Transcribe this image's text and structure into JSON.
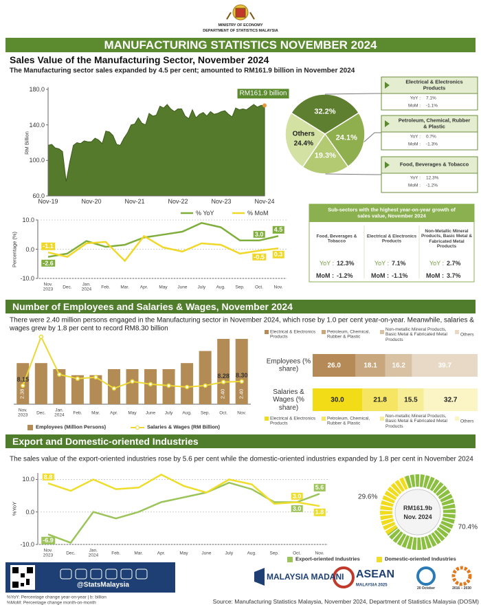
{
  "header": {
    "ministry": "MINISTRY OF ECONOMY",
    "department": "DEPARTMENT OF STATISTICS MALAYSIA",
    "title": "MANUFACTURING STATISTICS NOVEMBER 2024"
  },
  "sections": [
    {
      "heading": "Sales Value of the Manufacturing Sector, November 2024",
      "text": "The Manufacturing sector sales expanded by 4.5 per cent; amounted to RM161.9 billion in November 2024"
    },
    {
      "heading": "Number of Employees and Salaries & Wages, November 2024",
      "text": "There were 2.40 million persons engaged in the Manufacturing sector in November 2024, which rose by 1.0 per cent year-on-year. Meanwhile, salaries & wages grew by 1.8 per cent to record RM8.30 billion"
    },
    {
      "heading": "Export and Domestic-oriented Industries",
      "text": "The sales value of the export-oriented industries rose by 5.6 per cent while the domestic-oriented industries expanded by 1.8 per cent in November 2024"
    }
  ],
  "chart_data": [
    {
      "type": "area",
      "ylabel": "RM Billion",
      "annotation": "RM161.9 billion",
      "color": "#557a2c",
      "categories": [
        "Nov-19",
        null,
        null,
        null,
        null,
        null,
        null,
        null,
        null,
        null,
        null,
        null,
        "Nov-20",
        null,
        null,
        null,
        null,
        null,
        null,
        null,
        null,
        null,
        null,
        null,
        "Nov-21",
        null,
        null,
        null,
        null,
        null,
        null,
        null,
        null,
        null,
        null,
        null,
        "Nov-22",
        null,
        null,
        null,
        null,
        null,
        null,
        null,
        null,
        null,
        null,
        null,
        "Nov-23",
        null,
        null,
        null,
        null,
        null,
        null,
        null,
        null,
        null,
        null,
        null,
        "Nov-24"
      ],
      "values": [
        117,
        118,
        114,
        113,
        110,
        76,
        98,
        117,
        120,
        119,
        122,
        121,
        121,
        125,
        123,
        119,
        133,
        132,
        128,
        118,
        117,
        125,
        131,
        140,
        141,
        148,
        142,
        140,
        153,
        150,
        151,
        161,
        159,
        163,
        158,
        155,
        158,
        158,
        150,
        147,
        157,
        148,
        152,
        154,
        150,
        155,
        152,
        153,
        155,
        156,
        152,
        149,
        159,
        157,
        158,
        157,
        160,
        163,
        160,
        162,
        161.9
      ],
      "ylim": [
        60,
        180
      ],
      "yticks": [
        {
          "value": 60,
          "label": "60.0"
        },
        {
          "value": 100,
          "label": "100.0"
        },
        {
          "value": 140,
          "label": "140.0"
        },
        {
          "value": 180,
          "label": "180.0"
        }
      ]
    },
    {
      "type": "pie",
      "categories": [
        "Electrical & Electronics Products",
        "Petroleum, Chemical, Rubber & Plastic",
        "Food, Beverages & Tobacco",
        "Others"
      ],
      "values": [
        32.2,
        24.1,
        19.3,
        24.4
      ],
      "value_labels": [
        "32.2%",
        "24.1%",
        "19.3%",
        "24.4%"
      ],
      "colors": [
        "#5e7f2f",
        "#8fae4e",
        "#b3ca72",
        "#d3e1a2"
      ]
    },
    {
      "type": "line",
      "ylabel": "Percentage (%)",
      "legend": "top",
      "categories": [
        "Nov. 2023",
        "Dec.",
        "Jan. 2024",
        "Feb.",
        "Mar.",
        "Apr.",
        "May",
        "June",
        "July",
        "Aug.",
        "Sep.",
        "Oct.",
        "Nov."
      ],
      "ylim": [
        -10,
        10
      ],
      "yticks": [
        {
          "value": -10,
          "label": "-10.0"
        },
        {
          "value": 0,
          "label": "0.0"
        },
        {
          "value": 10,
          "label": "10.0"
        }
      ],
      "series": [
        {
          "name": "% YoY",
          "color": "#7fae3c",
          "values": [
            -2.6,
            -1.5,
            2.8,
            0.8,
            1.5,
            4.0,
            5.0,
            6.0,
            9.0,
            7.5,
            3.0,
            3.0,
            4.5
          ],
          "value_labels": [
            "-2.6",
            null,
            null,
            null,
            null,
            null,
            null,
            null,
            null,
            null,
            null,
            "3.0",
            "4.5"
          ]
        },
        {
          "name": "% MoM",
          "color": "#f0d82a",
          "values": [
            -1.1,
            -2.6,
            2.0,
            2.5,
            -4.0,
            4.5,
            0.6,
            -0.8,
            2.0,
            1.5,
            -1.5,
            -0.5,
            0.3
          ],
          "value_labels": [
            "-1.1",
            null,
            null,
            null,
            null,
            null,
            null,
            null,
            null,
            null,
            null,
            "-0.5",
            "0.3"
          ]
        }
      ]
    },
    {
      "type": "bar_line",
      "legend": "bottom",
      "categories": [
        "Nov. 2023",
        "Dec.",
        "Jan. 2024",
        "Feb.",
        "Mar.",
        "Apr.",
        "May",
        "June",
        "July",
        "Aug.",
        "Sep.",
        "Oct.",
        "Nov."
      ],
      "series": [
        {
          "name": "Employees (Million Persons)",
          "type": "bar",
          "color": "#b38b55",
          "values": [
            2.38,
            2.38,
            2.375,
            2.37,
            2.37,
            2.375,
            2.375,
            2.375,
            2.375,
            2.38,
            2.39,
            2.4,
            2.4
          ],
          "value_labels": [
            "2.38",
            null,
            null,
            null,
            null,
            null,
            null,
            null,
            null,
            null,
            null,
            "2.40",
            "2.40"
          ]
        },
        {
          "name": "Salaries & Wages (RM Billion)",
          "type": "line",
          "color": "#ecd834",
          "values": [
            8.15,
            9.9,
            8.55,
            8.4,
            8.45,
            8.05,
            8.3,
            8.2,
            8.15,
            8.1,
            8.15,
            8.28,
            8.3
          ],
          "value_labels": [
            "8.15",
            null,
            null,
            null,
            null,
            null,
            null,
            null,
            null,
            null,
            null,
            "8.28",
            "8.30"
          ]
        }
      ]
    },
    {
      "type": "stacked_bar",
      "orientation": "horizontal",
      "categories": [
        "Employees (% share)",
        "Salaries & Wages (% share)"
      ],
      "series": [
        {
          "name": "Electrical & Electronics Products",
          "colors": [
            "#b68a56",
            "#f2dc17"
          ],
          "values": [
            26.0,
            30.0
          ],
          "value_labels": [
            "26.0",
            "30.0"
          ]
        },
        {
          "name": "Petroleum, Chemical, Rubber & Plastic",
          "colors": [
            "#c9a77e",
            "#f5e563"
          ],
          "values": [
            18.1,
            21.8
          ],
          "value_labels": [
            "18.1",
            "21.8"
          ]
        },
        {
          "name": "Non-metallic Mineral Products, Basic Metal & Fabricated Metal Products",
          "colors": [
            "#d9c1a3",
            "#f8ed97"
          ],
          "values": [
            16.2,
            15.5
          ],
          "value_labels": [
            "16.2",
            "15.5"
          ]
        },
        {
          "name": "Others",
          "colors": [
            "#e8d9c6",
            "#fbf4c4"
          ],
          "values": [
            39.7,
            32.7
          ],
          "value_labels": [
            "39.7",
            "32.7"
          ]
        }
      ]
    },
    {
      "type": "line",
      "ylabel": "%YoY",
      "legend": "bottom",
      "categories": [
        "Nov. 2023",
        "Dec.",
        "Jan. 2024",
        "Feb.",
        "Mar.",
        "Apr.",
        "May",
        "June",
        "July",
        "Aug.",
        "Sep.",
        "Oct.",
        "Nov."
      ],
      "ylim": [
        -10,
        12
      ],
      "yticks": [
        {
          "value": -10,
          "label": "-10.0"
        },
        {
          "value": 0,
          "label": "0.0"
        },
        {
          "value": 10,
          "label": "10.0"
        }
      ],
      "series": [
        {
          "name": "Export-oriented Industries",
          "color": "#9cc45a",
          "values": [
            -6.9,
            -9.5,
            0.0,
            -2.0,
            0.0,
            3.0,
            4.5,
            6.0,
            9.0,
            7.0,
            3.0,
            3.0,
            5.6
          ],
          "value_labels": [
            "-6.9",
            null,
            null,
            null,
            null,
            null,
            null,
            null,
            null,
            null,
            null,
            "3.0",
            "5.6"
          ]
        },
        {
          "name": "Domestic-oriented Industries",
          "color": "#eedd2a",
          "values": [
            8.8,
            6.5,
            10.0,
            7.0,
            7.5,
            11.5,
            8.0,
            6.0,
            10.0,
            8.5,
            2.5,
            3.0,
            1.8
          ],
          "value_labels": [
            "8.8",
            null,
            null,
            null,
            null,
            null,
            null,
            null,
            null,
            null,
            null,
            "3.0",
            "1.8"
          ]
        }
      ]
    },
    {
      "type": "donut",
      "values": [
        70.4,
        29.6
      ],
      "value_labels": [
        "70.4%",
        "29.6%"
      ],
      "colors": [
        "#8bbf3f",
        "#f0dc1c"
      ],
      "center_label": [
        "RM161.9b",
        "Nov. 2024"
      ]
    }
  ],
  "sector_boxes": {
    "yoy_label": "YoY :",
    "mom_label": "MoM :",
    "items": [
      {
        "yoy": "7.1%",
        "mom": "-1.1%"
      },
      {
        "yoy": "0.7%",
        "mom": "-1.3%"
      },
      {
        "yoy": "12.3%",
        "mom": "-1.2%"
      }
    ]
  },
  "highlights": {
    "title": "Sub-sectors with the highest year-on-year growth of sales value, November 2024",
    "yoy_label": "YoY :",
    "mom_label": "MoM :",
    "items": [
      {
        "name": "Food, Beverages & Tobacco",
        "yoy": "12.3%",
        "mom": "-1.2%"
      },
      {
        "name": "Electrical & Electronics Products",
        "yoy": "7.1%",
        "mom": "-1.1%"
      },
      {
        "name": "Non-Metallic Mineral Products, Basic Metal & Fabricated Metal Products",
        "yoy": "2.7%",
        "mom": "3.7%"
      }
    ]
  },
  "footer": {
    "handle": "@StatsMalaysia",
    "notes": [
      "%YoY: Percentage change year-on-year | b: billion",
      "%MoM: Percentage change month-on-month"
    ],
    "source": "Source: Manufacturing Statistics Malaysia, November 2024, Department of Statistics Malaysia (DOSM)",
    "logos": [
      "MALAYSIA MADANI",
      "ASEAN",
      "MALAYSIA 2025",
      "20 October",
      "2016 – 2030"
    ]
  }
}
